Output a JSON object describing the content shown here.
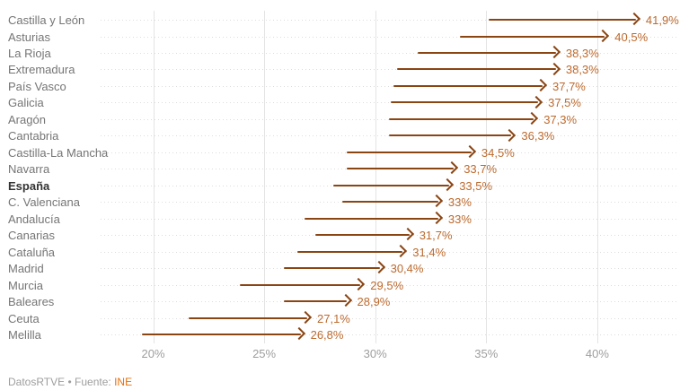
{
  "footer": {
    "brand": "DatosRTVE",
    "separator": "•",
    "source_label": "Fuente:",
    "source_name": "INE"
  },
  "colors": {
    "background": "#ffffff",
    "arrow": "#8a4513",
    "value_label": "#bd6a2e",
    "region_label": "#757575",
    "emphasis_label": "#333333",
    "tick_label": "#9e9e9e",
    "vertical_gridline": "#e4e4e4",
    "row_dotted_line": "#dddddd",
    "footer_text": "#9e9e9e",
    "source_link": "#e8710a"
  },
  "chart_data": {
    "type": "arrow",
    "orientation": "horizontal",
    "title": "",
    "xlabel": "",
    "ylabel": "",
    "value_suffix": "%",
    "x_ticks": [
      "20%",
      "25%",
      "30%",
      "35%",
      "40%"
    ],
    "x_tick_values": [
      20,
      25,
      30,
      35,
      40
    ],
    "xlim": [
      17.6,
      43.7
    ],
    "grid": "vertical solid lines at ticks, horizontal dotted guide per row",
    "legend": "none",
    "rows": [
      {
        "region": "Castilla y León",
        "start": 35.1,
        "end": 41.9,
        "label": "41,9%",
        "emphasis": false
      },
      {
        "region": "Asturias",
        "start": 33.8,
        "end": 40.5,
        "label": "40,5%",
        "emphasis": false
      },
      {
        "region": "La Rioja",
        "start": 31.9,
        "end": 38.3,
        "label": "38,3%",
        "emphasis": false
      },
      {
        "region": "Extremadura",
        "start": 31.0,
        "end": 38.3,
        "label": "38,3%",
        "emphasis": false
      },
      {
        "region": "País Vasco",
        "start": 30.8,
        "end": 37.7,
        "label": "37,7%",
        "emphasis": false
      },
      {
        "region": "Galicia",
        "start": 30.7,
        "end": 37.5,
        "label": "37,5%",
        "emphasis": false
      },
      {
        "region": "Aragón",
        "start": 30.6,
        "end": 37.3,
        "label": "37,3%",
        "emphasis": false
      },
      {
        "region": "Cantabria",
        "start": 30.6,
        "end": 36.3,
        "label": "36,3%",
        "emphasis": false
      },
      {
        "region": "Castilla-La Mancha",
        "start": 28.7,
        "end": 34.5,
        "label": "34,5%",
        "emphasis": false
      },
      {
        "region": "Navarra",
        "start": 28.7,
        "end": 33.7,
        "label": "33,7%",
        "emphasis": false
      },
      {
        "region": "España",
        "start": 28.1,
        "end": 33.5,
        "label": "33,5%",
        "emphasis": true
      },
      {
        "region": "C. Valenciana",
        "start": 28.5,
        "end": 33.0,
        "label": "33%",
        "emphasis": false
      },
      {
        "region": "Andalucía",
        "start": 26.8,
        "end": 33.0,
        "label": "33%",
        "emphasis": false
      },
      {
        "region": "Canarias",
        "start": 27.3,
        "end": 31.7,
        "label": "31,7%",
        "emphasis": false
      },
      {
        "region": "Cataluña",
        "start": 26.5,
        "end": 31.4,
        "label": "31,4%",
        "emphasis": false
      },
      {
        "region": "Madrid",
        "start": 25.9,
        "end": 30.4,
        "label": "30,4%",
        "emphasis": false
      },
      {
        "region": "Murcia",
        "start": 23.9,
        "end": 29.5,
        "label": "29,5%",
        "emphasis": false
      },
      {
        "region": "Baleares",
        "start": 25.9,
        "end": 28.9,
        "label": "28,9%",
        "emphasis": false
      },
      {
        "region": "Ceuta",
        "start": 21.6,
        "end": 27.1,
        "label": "27,1%",
        "emphasis": false
      },
      {
        "region": "Melilla",
        "start": 19.5,
        "end": 26.8,
        "label": "26,8%",
        "emphasis": false
      }
    ]
  }
}
